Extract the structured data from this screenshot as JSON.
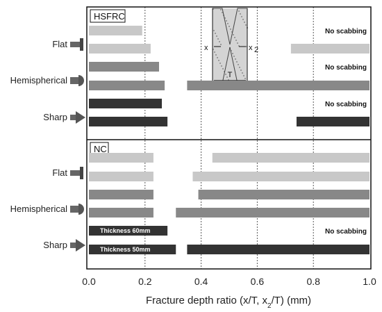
{
  "chart_data": {
    "type": "bar",
    "orientation": "horizontal",
    "xlabel": "Fracture depth ratio (x/T, x",
    "xlabel_sub": "2",
    "xlabel_tail": "/T) (mm)",
    "xlim": [
      0.0,
      1.0
    ],
    "x_ticks": [
      "0.0",
      "0.2",
      "0.4",
      "0.6",
      "0.8",
      "1.0"
    ],
    "grid": "dotted vertical lines at 0.2, 0.4, 0.6, 0.8",
    "inset": {
      "x_label": "x",
      "x2_label": "x",
      "x2_sub": "2",
      "t_label": "T"
    },
    "panels": [
      {
        "name": "HSFRC",
        "groups": [
          {
            "label": "Flat",
            "icon": "flat-projectile-icon",
            "color": "#c8c8c8",
            "rows": [
              {
                "x_ratio": 0.19,
                "x2_ratio": null,
                "note": "No scabbing",
                "bar_text": ""
              },
              {
                "x_ratio": 0.22,
                "x2_ratio": 0.28,
                "note": "",
                "bar_text": ""
              }
            ]
          },
          {
            "label": "Hemispherical",
            "icon": "hemispherical-projectile-icon",
            "color": "#888888",
            "rows": [
              {
                "x_ratio": 0.25,
                "x2_ratio": null,
                "note": "No scabbing",
                "bar_text": ""
              },
              {
                "x_ratio": 0.27,
                "x2_ratio": 0.65,
                "note": "",
                "bar_text": ""
              }
            ]
          },
          {
            "label": "Sharp",
            "icon": "sharp-projectile-icon",
            "color": "#333333",
            "rows": [
              {
                "x_ratio": 0.26,
                "x2_ratio": null,
                "note": "No scabbing",
                "bar_text": ""
              },
              {
                "x_ratio": 0.28,
                "x2_ratio": 0.26,
                "note": "",
                "bar_text": ""
              }
            ]
          }
        ]
      },
      {
        "name": "NC",
        "groups": [
          {
            "label": "Flat",
            "icon": "flat-projectile-icon",
            "color": "#c8c8c8",
            "rows": [
              {
                "x_ratio": 0.23,
                "x2_ratio": 0.56,
                "note": "",
                "bar_text": ""
              },
              {
                "x_ratio": 0.23,
                "x2_ratio": 0.63,
                "note": "",
                "bar_text": ""
              }
            ]
          },
          {
            "label": "Hemispherical",
            "icon": "hemispherical-projectile-icon",
            "color": "#888888",
            "rows": [
              {
                "x_ratio": 0.23,
                "x2_ratio": 0.61,
                "note": "",
                "bar_text": ""
              },
              {
                "x_ratio": 0.23,
                "x2_ratio": 0.69,
                "note": "",
                "bar_text": ""
              }
            ]
          },
          {
            "label": "Sharp",
            "icon": "sharp-projectile-icon",
            "color": "#333333",
            "rows": [
              {
                "x_ratio": 0.28,
                "x2_ratio": null,
                "note": "No scabbing",
                "bar_text": "Thickness 60mm"
              },
              {
                "x_ratio": 0.31,
                "x2_ratio": 0.65,
                "note": "",
                "bar_text": "Thickness 50mm"
              }
            ]
          }
        ]
      }
    ]
  }
}
